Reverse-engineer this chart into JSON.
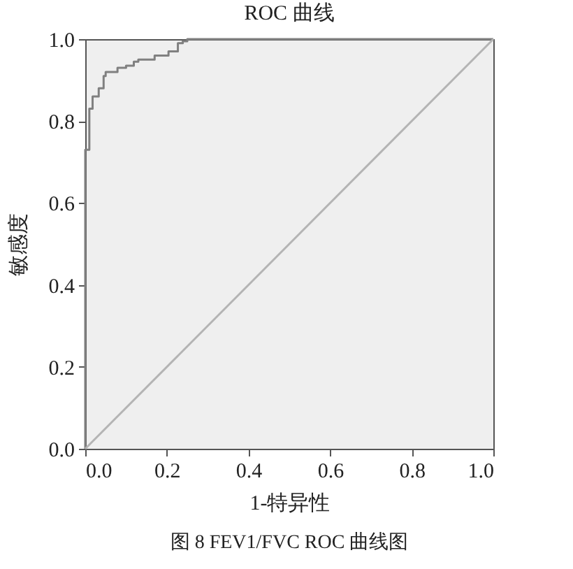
{
  "chart_data": {
    "type": "step",
    "title": "ROC 曲线",
    "xlabel": "1-特异性",
    "ylabel": "敏感度",
    "annotations": [
      "图 8  FEV1/FVC ROC 曲线图"
    ],
    "series": [
      {
        "color": "#808080",
        "x": [
          0,
          0,
          0.01,
          0.018,
          0.033,
          0.045,
          0.05,
          0.079,
          0.1,
          0.119,
          0.13,
          0.17,
          0.204,
          0.227,
          0.239,
          0.25,
          1.0
        ],
        "values": [
          0,
          0.73,
          0.83,
          0.86,
          0.88,
          0.91,
          0.92,
          0.93,
          0.935,
          0.945,
          0.95,
          0.96,
          0.97,
          0.99,
          0.995,
          1.0,
          1.0
        ]
      },
      {
        "type": "line",
        "color": "#b4b4b4",
        "x": [
          0,
          1
        ],
        "values": [
          0,
          1
        ]
      }
    ],
    "xlim": [
      0,
      1
    ],
    "ylim": [
      0,
      1
    ],
    "xticks": [
      {
        "value": 0,
        "label": "0.0"
      },
      {
        "value": 0.2,
        "label": "0.2"
      },
      {
        "value": 0.4,
        "label": "0.4"
      },
      {
        "value": 0.6,
        "label": "0.6"
      },
      {
        "value": 0.8,
        "label": "0.8"
      },
      {
        "value": 1,
        "label": "1.0"
      }
    ],
    "yticks": [
      {
        "value": 0,
        "label": "0.0"
      },
      {
        "value": 0.2,
        "label": "0.2"
      },
      {
        "value": 0.4,
        "label": "0.4"
      },
      {
        "value": 0.6,
        "label": "0.6"
      },
      {
        "value": 0.8,
        "label": "0.8"
      },
      {
        "value": 1,
        "label": "1.0"
      }
    ],
    "grid": false
  }
}
